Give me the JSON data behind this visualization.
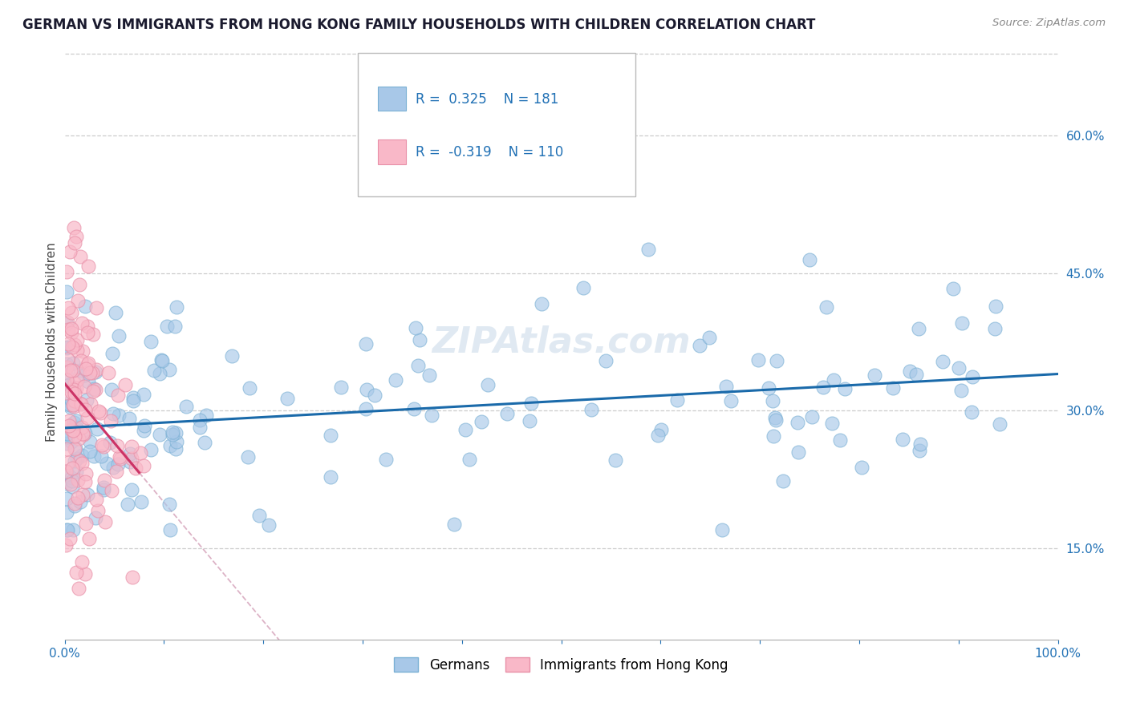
{
  "title": "GERMAN VS IMMIGRANTS FROM HONG KONG FAMILY HOUSEHOLDS WITH CHILDREN CORRELATION CHART",
  "source_text": "Source: ZipAtlas.com",
  "ylabel": "Family Households with Children",
  "x_min": 0.0,
  "x_max": 1.0,
  "y_min": 0.05,
  "y_max": 0.7,
  "x_ticks_minor": [
    0.0,
    0.1,
    0.2,
    0.3,
    0.4,
    0.5,
    0.6,
    0.7,
    0.8,
    0.9,
    1.0
  ],
  "x_tick_edge_labels": {
    "0.0": "0.0%",
    "1.0": "100.0%"
  },
  "y_ticks": [
    0.15,
    0.3,
    0.45,
    0.6
  ],
  "y_tick_labels": [
    "15.0%",
    "30.0%",
    "45.0%",
    "60.0%"
  ],
  "german_color": "#a8c8e8",
  "german_edge_color": "#7ab0d4",
  "hk_color": "#f9b8c8",
  "hk_edge_color": "#e890a8",
  "german_line_color": "#1a6aaa",
  "hk_line_color": "#cc3366",
  "hk_line_dashed_color": "#d4a0b8",
  "legend_r_german": "0.325",
  "legend_n_german": "181",
  "legend_r_hk": "-0.319",
  "legend_n_hk": "110",
  "legend_label_german": "Germans",
  "legend_label_hk": "Immigrants from Hong Kong",
  "watermark": "ZIPAtlas.com",
  "title_color": "#1a1a2e",
  "source_color": "#888888",
  "axis_label_color": "#444444",
  "tick_label_color": "#2171b5",
  "grid_color": "#cccccc",
  "background_color": "#ffffff",
  "german_seed": 42,
  "hk_seed": 123,
  "german_n": 181,
  "hk_n": 110
}
